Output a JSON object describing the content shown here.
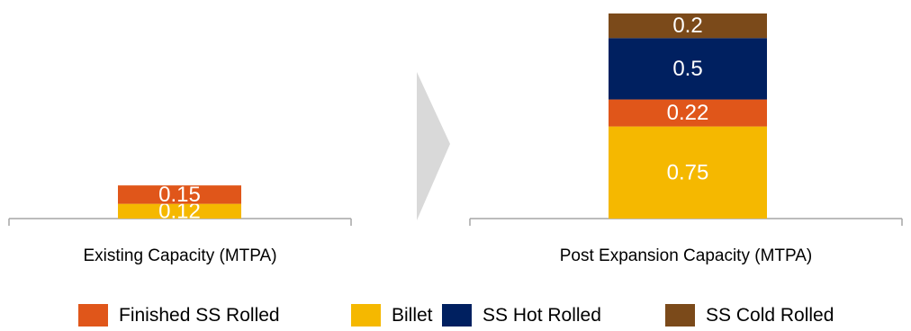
{
  "chart_data": {
    "type": "bar",
    "stacked": true,
    "categories": [
      "Existing Capacity (MTPA)",
      "Post Expansion Capacity (MTPA)"
    ],
    "series": [
      {
        "name": "Billet",
        "values": [
          0.12,
          0.75
        ],
        "color": "#F5B800"
      },
      {
        "name": "Finished SS Rolled",
        "values": [
          0.15,
          0.22
        ],
        "color": "#E0561A"
      },
      {
        "name": "SS Hot Rolled",
        "values": [
          0,
          0.5
        ],
        "color": "#002060"
      },
      {
        "name": "SS Cold Rolled",
        "values": [
          0,
          0.2
        ],
        "color": "#7B4A1A"
      }
    ],
    "data_labels": [
      [
        "0.12",
        "0.15",
        "",
        ""
      ],
      [
        "0.75",
        "0.22",
        "0.5",
        "0.2"
      ]
    ],
    "legend": {
      "placement": "bottom",
      "order": [
        "Finished SS Rolled",
        "Billet",
        "SS Hot Rolled",
        "SS Cold Rolled"
      ]
    },
    "arrow_color": "#D9D9D9"
  }
}
